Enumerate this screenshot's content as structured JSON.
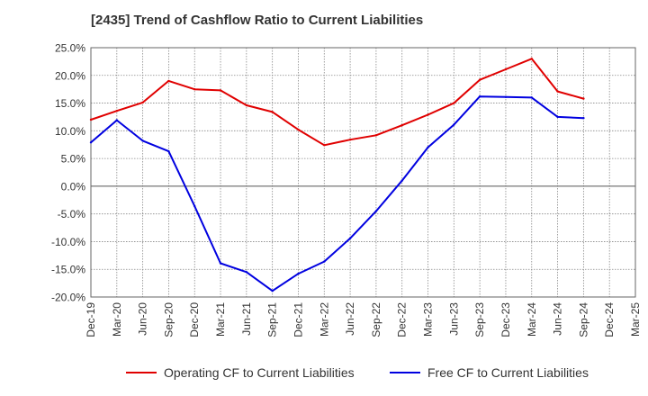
{
  "chart_data": {
    "type": "line",
    "title": "[2435]  Trend of Cashflow Ratio to Current Liabilities",
    "xlabel": "",
    "ylabel": "",
    "x_categories": [
      "Dec-19",
      "Mar-20",
      "Jun-20",
      "Sep-20",
      "Dec-20",
      "Mar-21",
      "Jun-21",
      "Sep-21",
      "Dec-21",
      "Mar-22",
      "Jun-22",
      "Sep-22",
      "Dec-22",
      "Mar-23",
      "Jun-23",
      "Sep-23",
      "Dec-23",
      "Mar-24",
      "Jun-24",
      "Sep-24",
      "Dec-24",
      "Mar-25"
    ],
    "ylim": [
      -20,
      25
    ],
    "y_ticks": [
      25,
      20,
      15,
      10,
      5,
      0,
      -5,
      -10,
      -15,
      -20
    ],
    "y_tick_labels": [
      "25.0%",
      "20.0%",
      "15.0%",
      "10.0%",
      "5.0%",
      "0.0%",
      "-5.0%",
      "-10.0%",
      "-15.0%",
      "-20.0%"
    ],
    "grid": true,
    "legend_position": "bottom",
    "series": [
      {
        "name": "Operating CF to Current Liabilities",
        "color": "#e00000",
        "values": [
          12.0,
          13.6,
          15.1,
          19.0,
          17.5,
          17.3,
          14.6,
          13.4,
          10.2,
          7.4,
          8.4,
          9.2,
          11.0,
          12.9,
          15.0,
          19.2,
          21.1,
          23.0,
          17.1,
          15.8,
          null,
          null
        ]
      },
      {
        "name": "Free CF to Current Liabilities",
        "color": "#0000e0",
        "values": [
          7.9,
          11.9,
          8.2,
          6.3,
          -3.6,
          -13.9,
          -15.5,
          -18.9,
          -15.8,
          -13.6,
          -9.4,
          -4.5,
          1.0,
          7.0,
          11.1,
          16.2,
          16.1,
          16.0,
          12.5,
          12.3,
          null,
          null
        ]
      }
    ]
  }
}
